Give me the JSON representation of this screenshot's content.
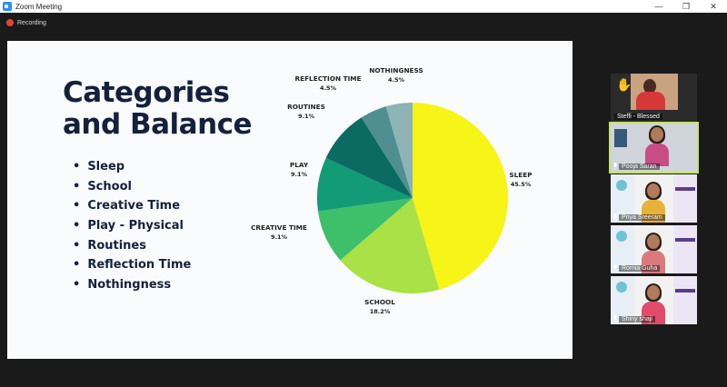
{
  "window": {
    "title": "Zoom Meeting",
    "minimize": "—",
    "restore": "❐",
    "close": "✕"
  },
  "recording": {
    "label": "Recording"
  },
  "slide": {
    "title_line1": "Categories",
    "title_line2": "and Balance",
    "bullets": [
      "Sleep",
      "School",
      "Creative Time",
      "Play - Physical",
      "Routines",
      "Reflection Time",
      "Nothingness"
    ]
  },
  "chart_data": {
    "type": "pie",
    "slices": [
      {
        "label": "SLEEP",
        "pct_label": "45.5%",
        "value": 45.5,
        "color": "#f7f417"
      },
      {
        "label": "SCHOOL",
        "pct_label": "18.2%",
        "value": 18.2,
        "color": "#a9e146"
      },
      {
        "label": "CREATIVE TIME",
        "pct_label": "9.1%",
        "value": 9.1,
        "color": "#3ebf6a"
      },
      {
        "label": "PLAY",
        "pct_label": "9.1%",
        "value": 9.1,
        "color": "#139a77"
      },
      {
        "label": "ROUTINES",
        "pct_label": "9.1%",
        "value": 9.1,
        "color": "#0b6b63"
      },
      {
        "label": "REFLECTION TIME",
        "pct_label": "4.5%",
        "value": 4.5,
        "color": "#4f8f91"
      },
      {
        "label": "NOTHINGNESS",
        "pct_label": "4.5%",
        "value": 4.5,
        "color": "#8eb3b5"
      }
    ]
  },
  "participants": [
    {
      "name": "Steffi - Blessed",
      "hand_raised": true
    },
    {
      "name": "Pooja Saran",
      "active_speaker": true
    },
    {
      "name": "Priya Sreeram"
    },
    {
      "name": "Romia Guha"
    },
    {
      "name": "Shiny shaji"
    }
  ]
}
